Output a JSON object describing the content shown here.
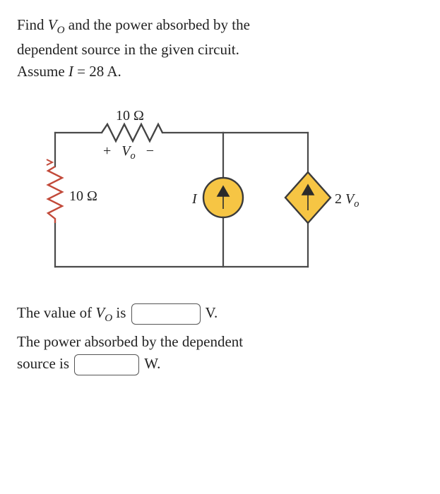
{
  "problem": {
    "line1a": "Find ",
    "line1_var": "V",
    "line1_sub": "O",
    "line1b": " and the power absorbed by the",
    "line2": "dependent source in the given circuit.",
    "line3a": "Assume ",
    "line3_var": "I",
    "line3b": " = 28 A."
  },
  "circuit": {
    "r_top_label": "10 Ω",
    "r_left_label": "10 Ω",
    "vo_plus": "+",
    "vo_var": "V",
    "vo_sub": "o",
    "vo_minus": "−",
    "i_label": "I",
    "dep_val": "2",
    "dep_var": "V",
    "dep_sub": "o",
    "colors": {
      "wire": "#4a4a4a",
      "resistor": "#444",
      "current_src_stroke": "#3a3a3a",
      "current_src_fill": "#f6c544",
      "diamond_stroke": "#3a3a3a",
      "diamond_fill": "#f6c544",
      "arrow_fill": "#2b2b2b",
      "red_zig": "#c24a3a"
    }
  },
  "answers": {
    "line1a": "The value of ",
    "line1_var": "V",
    "line1_sub": "O",
    "line1b": " is ",
    "line1_unit": " V.",
    "line2a": "The power absorbed by the dependent",
    "line2b": "source is ",
    "line2_unit": " W."
  },
  "style": {
    "blank1_width": 98,
    "blank2_width": 92
  }
}
